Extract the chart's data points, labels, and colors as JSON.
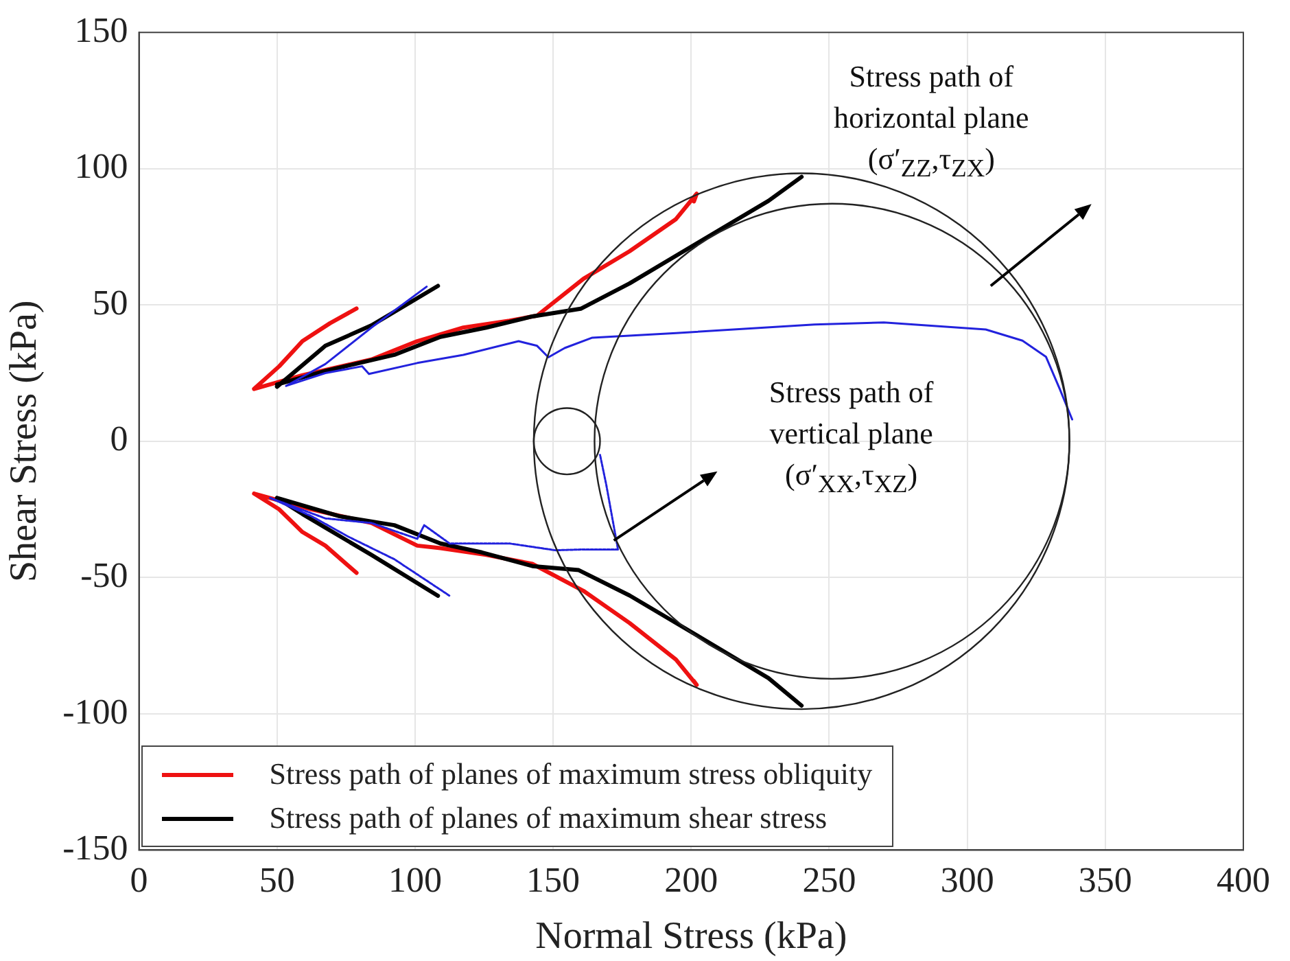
{
  "chart_data": {
    "type": "line",
    "xlabel": "Normal Stress (kPa)",
    "ylabel": "Shear Stress (kPa)",
    "xlim": [
      0,
      400
    ],
    "xticks": [
      0,
      50,
      100,
      150,
      200,
      250,
      300,
      350,
      400
    ],
    "ylim": [
      -150,
      150
    ],
    "yticks": [
      -150,
      -100,
      -50,
      0,
      50,
      100,
      150
    ],
    "grid": true,
    "legend": "bottom left",
    "annotations": [
      "Stress path of\nhorizontal plane\n(σ′$_{ZZ}$,τ$_{ZX}$)",
      "Stress path of\nvertical plane\n(σ′$_{XX}$,τ$_{XZ}$)"
    ],
    "series": [
      {
        "name": "Stress path of planes of maximum stress obliquity",
        "color": "#ee1111",
        "x": [
          41.7,
          50.8,
          59.2,
          69.2,
          78.8,
          null,
          41.7,
          59.2,
          84.2,
          100.8,
          117.5,
          134.2,
          144.2,
          161,
          177.7,
          194.5,
          202,
          201,
          null,
          41.7,
          50.8,
          59.2,
          67.5,
          78.8,
          null,
          41.7,
          62.5,
          84.2,
          100.8,
          109.2,
          125.8,
          142.5,
          161,
          177.7,
          194.5,
          202,
          201
        ],
        "values": [
          19.2,
          27.5,
          36.7,
          43.3,
          48.7,
          null,
          19.2,
          24.2,
          30,
          36.7,
          41.7,
          44.2,
          46.1,
          59.6,
          69.7,
          81.5,
          90.8,
          88,
          null,
          -19.2,
          -25,
          -33.3,
          -38.3,
          -48.3,
          null,
          -19.2,
          -25,
          -30,
          -38.3,
          -39.2,
          -41.7,
          -45,
          -54.9,
          -66.7,
          -80.1,
          -89.4,
          -88
        ]
      },
      {
        "name": "Stress path of planes of maximum shear stress",
        "color": "#000000",
        "x": [
          50,
          67.5,
          84.2,
          108.3,
          null,
          50,
          67.5,
          92.5,
          109.2,
          125.8,
          142.5,
          160,
          177.7,
          202.9,
          228,
          240,
          null,
          50,
          59.2,
          67.5,
          84.2,
          108.3,
          null,
          50,
          72.5,
          92.5,
          109.2,
          124.2,
          142.5,
          159.3,
          177.7,
          202.9,
          228,
          240
        ],
        "values": [
          20,
          35,
          42.5,
          57,
          null,
          20.8,
          25.8,
          31.7,
          38.3,
          41.7,
          45.8,
          48.6,
          57.9,
          73.1,
          88.2,
          97,
          null,
          -20.8,
          -26.7,
          -31.7,
          -41.7,
          -56.7,
          null,
          -20.8,
          -27.5,
          -30.8,
          -37.5,
          -40.8,
          -45.8,
          -47.3,
          -56.6,
          -71.7,
          -86.9,
          -97
        ]
      },
      {
        "color": "#2222dd",
        "x": [
          53.3,
          67.5,
          84.2,
          104.2,
          null,
          53.3,
          67.5,
          80.8,
          83.3,
          100.8,
          117.5,
          137.5,
          144.2,
          148.3,
          154.2,
          164.2,
          194.5,
          244.7,
          269.8,
          306.7,
          320,
          328.5,
          333.5,
          338
        ],
        "values": [
          20.3,
          28.3,
          41.7,
          56.7,
          null,
          20.3,
          25,
          27.5,
          24.7,
          28.7,
          31.7,
          36.7,
          35,
          30.8,
          34.2,
          38,
          39.7,
          42.8,
          43.6,
          41,
          36.9,
          31,
          19.2,
          8
        ]
      },
      {
        "color": "#2222dd",
        "line_style": "dotted",
        "x": [
          47.5,
          62.5,
          75.8,
          92.5,
          112.5,
          null,
          47.5,
          67.5,
          84.2,
          100.8,
          103.3,
          112.5,
          134.2,
          150.8,
          161,
          173.5,
          169.3,
          167
        ],
        "values": [
          -20.8,
          -27.5,
          -35,
          -43.3,
          -56.7,
          null,
          -20.8,
          -28.3,
          -30,
          -35.8,
          -30.8,
          -37.5,
          -37.5,
          -40,
          -39.7,
          -39.7,
          -16.2,
          -5
        ]
      }
    ]
  }
}
